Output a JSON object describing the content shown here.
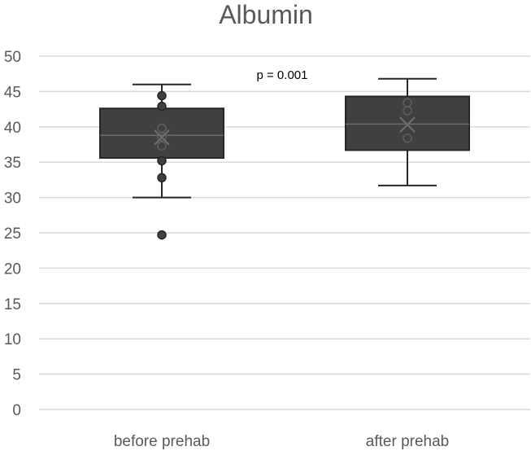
{
  "chart_data": {
    "type": "box",
    "title": "Albumin",
    "xlabel": "",
    "ylabel": "",
    "ylim": [
      0,
      50
    ],
    "yticks": [
      0,
      5,
      10,
      15,
      20,
      25,
      30,
      35,
      40,
      45,
      50
    ],
    "categories": [
      "before prehab",
      "after prehab"
    ],
    "boxes": [
      {
        "category": "before prehab",
        "min": 30.0,
        "q1": 35.6,
        "median": 38.8,
        "q3": 42.6,
        "max": 46.0,
        "mean": 38.5,
        "points": [
          44.4,
          42.9,
          39.8,
          38.6,
          37.3,
          35.2,
          32.8,
          24.7
        ],
        "outliers": [
          24.7
        ]
      },
      {
        "category": "after prehab",
        "min": 31.7,
        "q1": 36.7,
        "median": 40.4,
        "q3": 44.3,
        "max": 46.8,
        "mean": 40.3,
        "points": [
          43.4,
          42.3,
          38.4
        ],
        "outliers": []
      }
    ],
    "annotations": [
      {
        "text": "p = 0.001"
      }
    ],
    "grid": true,
    "legend": "none",
    "colors": {
      "box_fill": "#404040",
      "box_stroke": "#262626",
      "median_line": "#6b6b6b",
      "grid": "#d9d9d9",
      "text": "#595959"
    }
  }
}
